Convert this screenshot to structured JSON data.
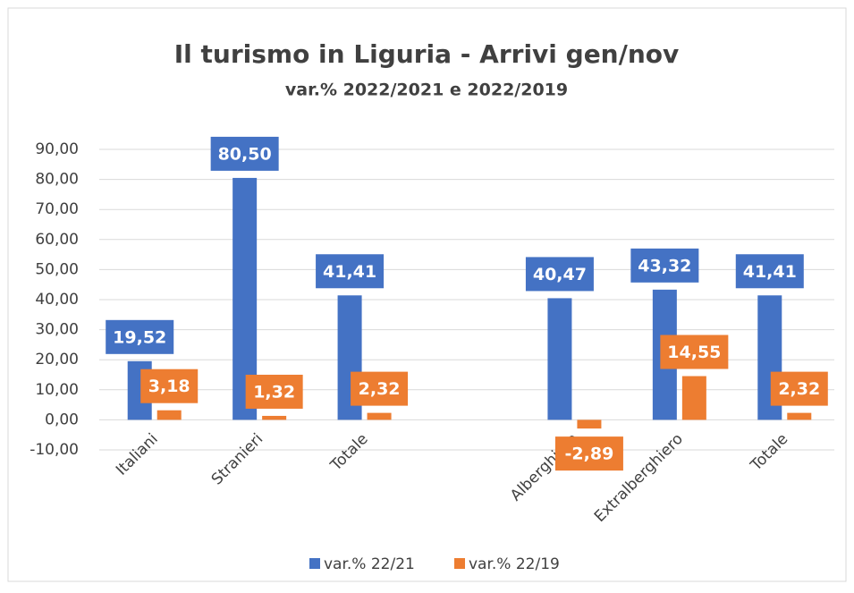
{
  "chart_data": {
    "type": "bar",
    "title": "Il turismo in Liguria - Arrivi gen/nov",
    "subtitle": "var.% 2022/2021 e 2022/2019",
    "categories": [
      "Italiani",
      "Stranieri",
      "Totale",
      null,
      "Alberghiero",
      "Extralberghiero",
      "Totale"
    ],
    "series": [
      {
        "name": "var.% 22/21",
        "color": "#4472c4",
        "values": [
          19.52,
          80.5,
          41.41,
          null,
          40.47,
          43.32,
          41.41
        ],
        "value_labels": [
          "19,52",
          "80,50",
          "41,41",
          null,
          "40,47",
          "43,32",
          "41,41"
        ]
      },
      {
        "name": "var.% 22/19",
        "color": "#ed7d31",
        "values": [
          3.18,
          1.32,
          2.32,
          null,
          -2.89,
          14.55,
          2.32
        ],
        "value_labels": [
          "3,18",
          "1,32",
          "2,32",
          null,
          "-2,89",
          "14,55",
          "2,32"
        ]
      }
    ],
    "ylim": [
      -10,
      90
    ],
    "yticks": [
      {
        "value": -10,
        "label": "-10,00"
      },
      {
        "value": 0,
        "label": "0,00"
      },
      {
        "value": 10,
        "label": "10,00"
      },
      {
        "value": 20,
        "label": "20,00"
      },
      {
        "value": 30,
        "label": "30,00"
      },
      {
        "value": 40,
        "label": "40,00"
      },
      {
        "value": 50,
        "label": "50,00"
      },
      {
        "value": 60,
        "label": "60,00"
      },
      {
        "value": 70,
        "label": "70,00"
      },
      {
        "value": 80,
        "label": "80,00"
      },
      {
        "value": 90,
        "label": "90,00"
      }
    ],
    "grid": true,
    "legend": "bottom"
  }
}
